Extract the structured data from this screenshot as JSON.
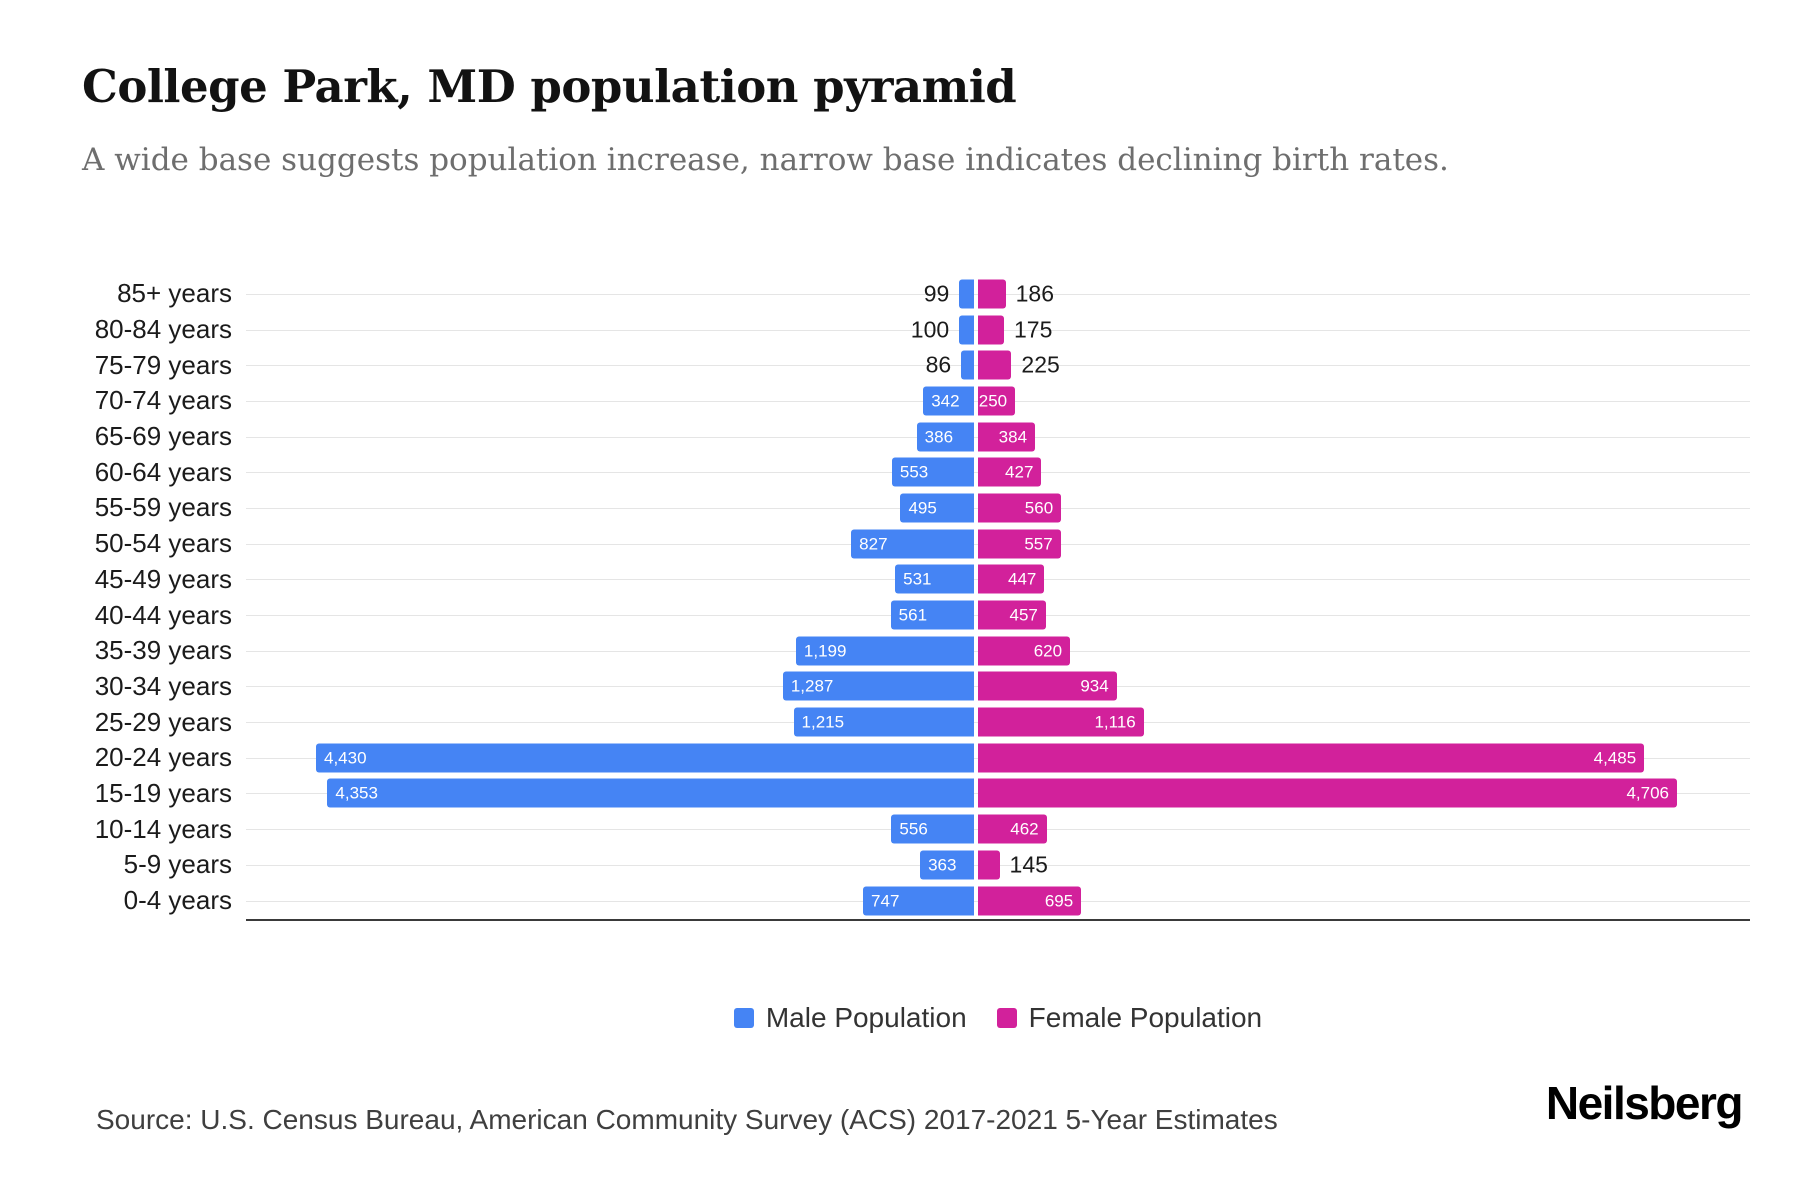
{
  "header": {
    "title": "College Park, MD population pyramid",
    "subtitle": "A wide base suggests population increase, narrow base indicates declining birth rates."
  },
  "chart_data": {
    "type": "bar",
    "variant": "population-pyramid",
    "orientation": "horizontal",
    "gridlines": true,
    "legend_position": "bottom",
    "categories": [
      "85+ years",
      "80-84 years",
      "75-79 years",
      "70-74 years",
      "65-69 years",
      "60-64 years",
      "55-59 years",
      "50-54 years",
      "45-49 years",
      "40-44 years",
      "35-39 years",
      "30-34 years",
      "25-29 years",
      "20-24 years",
      "15-19 years",
      "10-14 years",
      "5-9 years",
      "0-4 years"
    ],
    "series": [
      {
        "name": "Male Population",
        "side": "left",
        "color": "#4584f4",
        "values": [
          99,
          100,
          86,
          342,
          386,
          553,
          495,
          827,
          531,
          561,
          1199,
          1287,
          1215,
          4430,
          4353,
          556,
          363,
          747
        ]
      },
      {
        "name": "Female Population",
        "side": "right",
        "color": "#d2219b",
        "values": [
          186,
          175,
          225,
          250,
          384,
          427,
          560,
          557,
          447,
          457,
          620,
          934,
          1116,
          4485,
          4706,
          462,
          145,
          695
        ]
      }
    ],
    "xmax": 4706,
    "value_label_inside_min": 240
  },
  "legend": {
    "items": [
      {
        "label": "Male Population",
        "color": "#4584f4"
      },
      {
        "label": "Female Population",
        "color": "#d2219b"
      }
    ]
  },
  "footer": {
    "source": "Source: U.S. Census Bureau, American Community Survey (ACS) 2017-2021 5-Year Estimates",
    "brand": "Neilsberg"
  }
}
